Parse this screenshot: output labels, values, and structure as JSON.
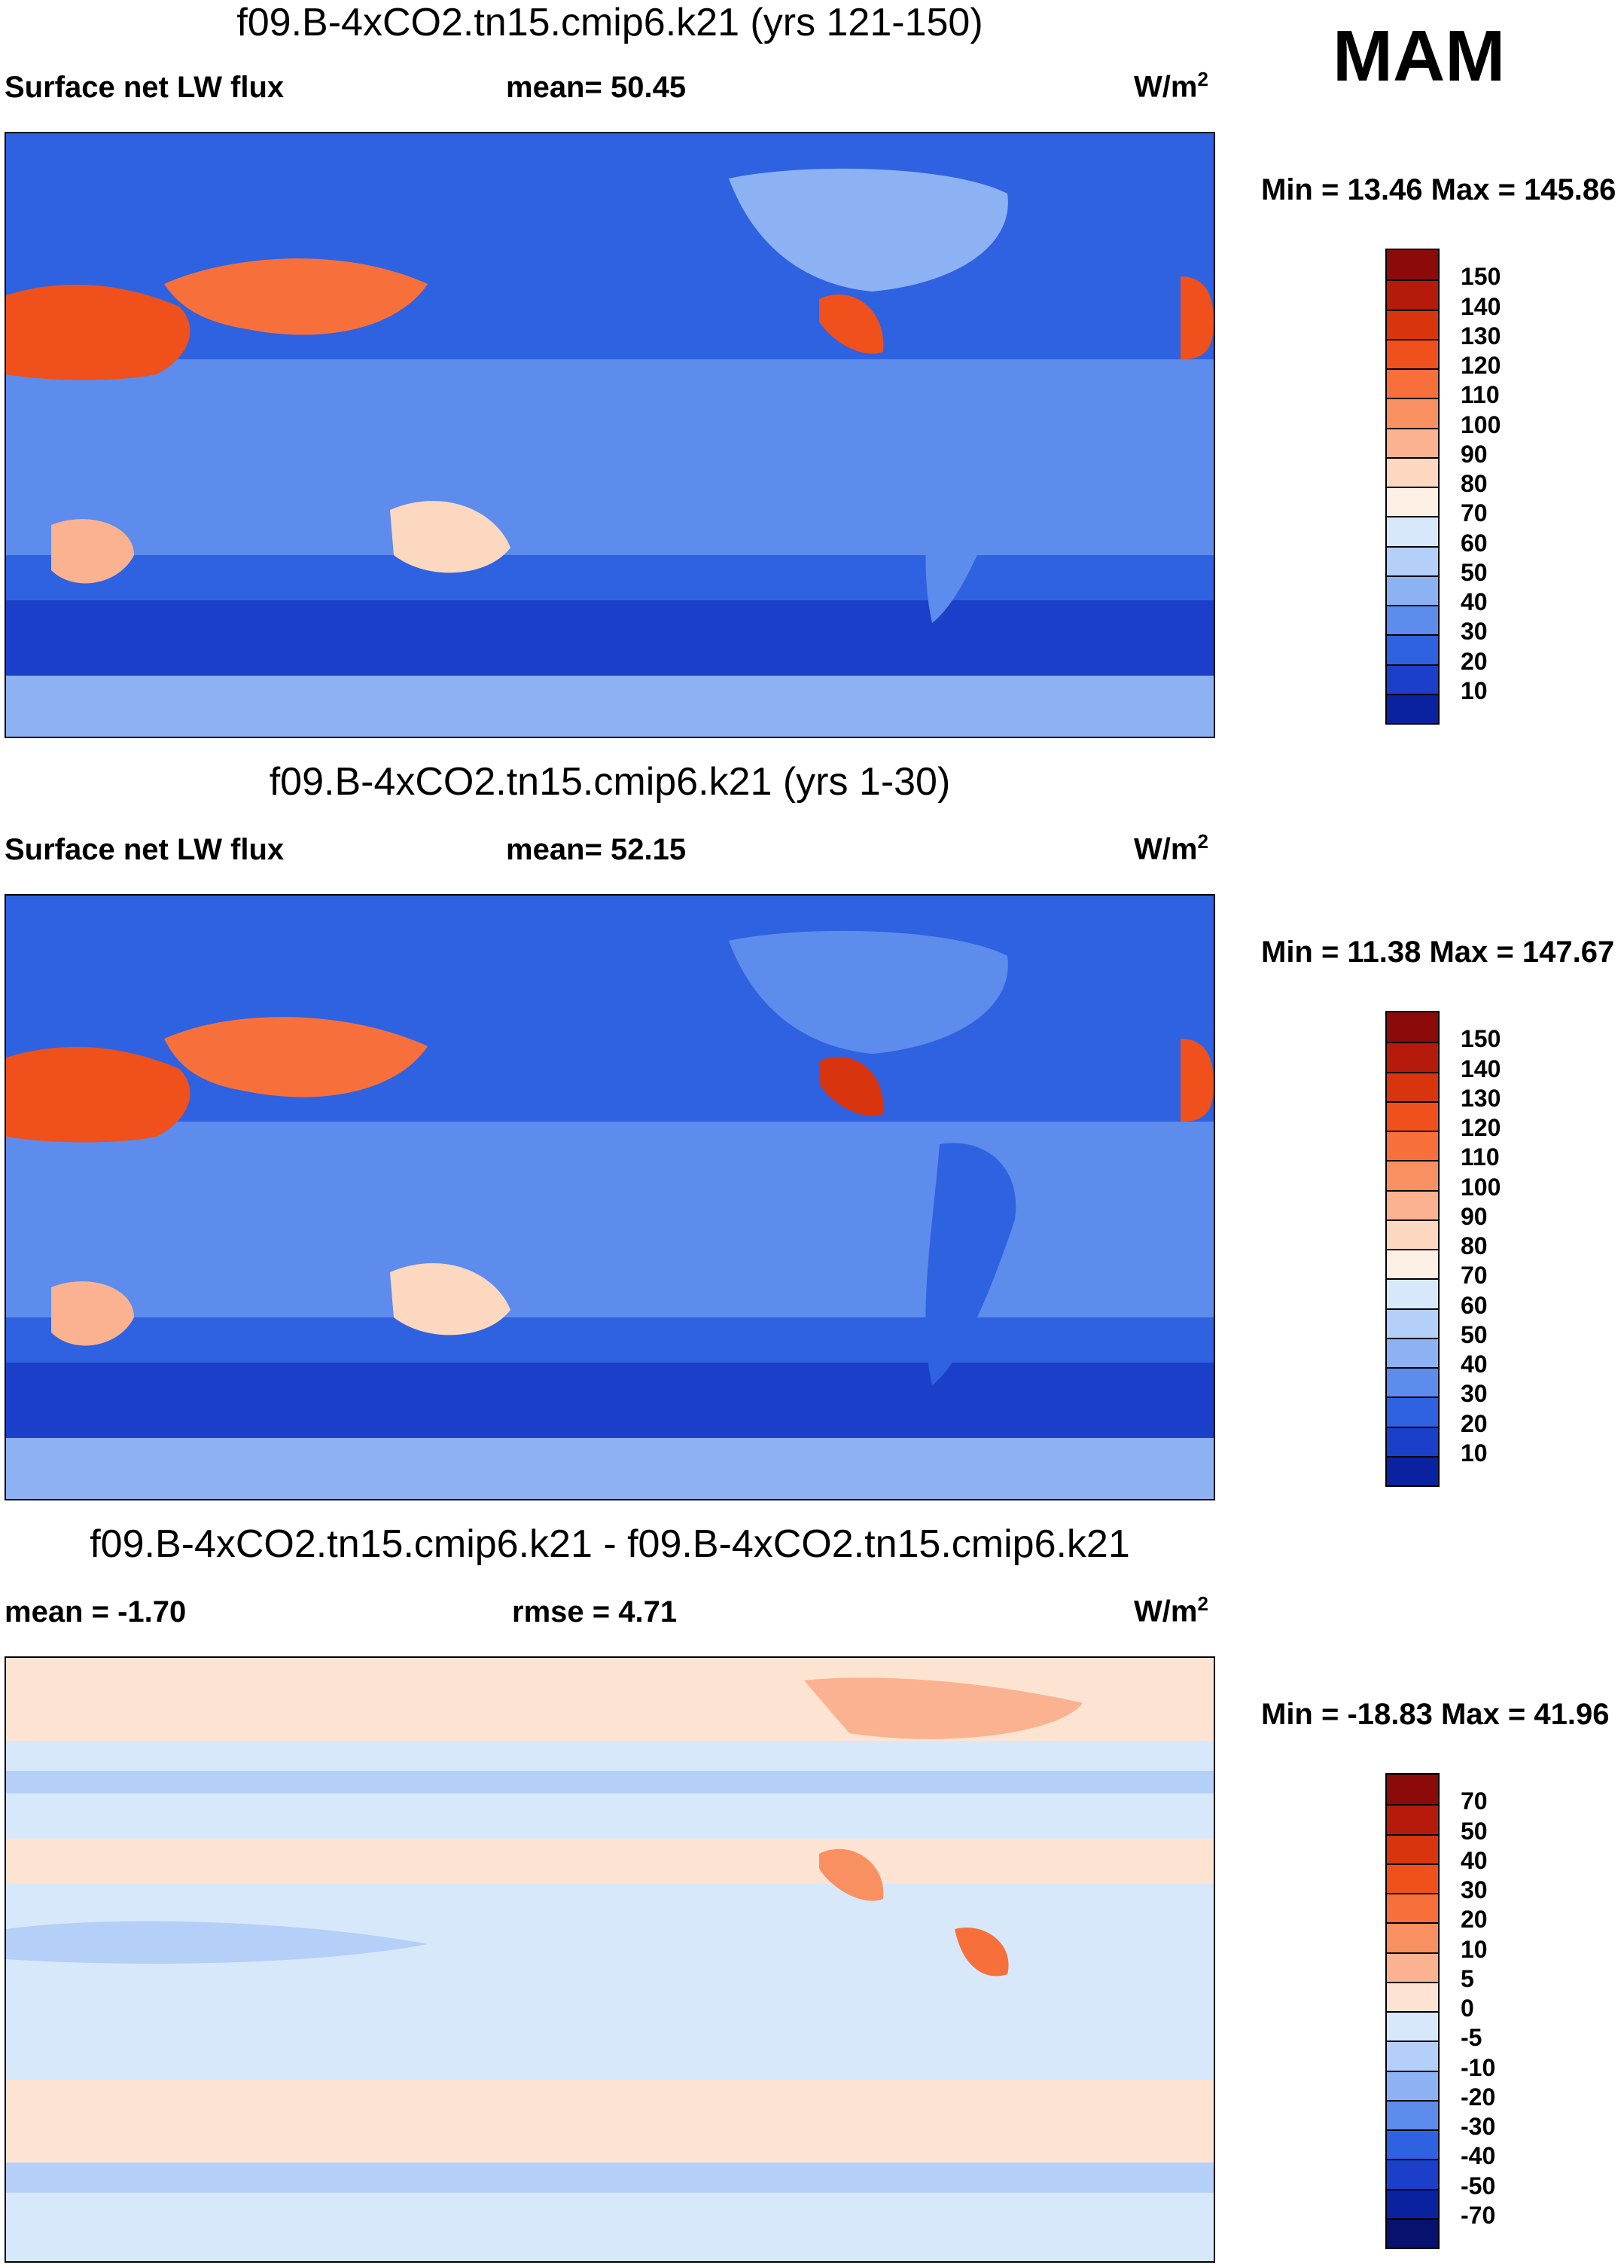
{
  "season": "MAM",
  "panels": [
    {
      "title": "f09.B-4xCO2.tn15.cmip6.k21 (yrs 121-150)",
      "left_label": "Surface net LW flux",
      "stat_label": "mean=",
      "stat_value": "50.45",
      "units": "W/m",
      "units_sup": "2",
      "min_max": "Min =  13.46 Max = 145.86"
    },
    {
      "title": "f09.B-4xCO2.tn15.cmip6.k21 (yrs 1-30)",
      "left_label": "Surface net LW flux",
      "stat_label": "mean=",
      "stat_value": "52.15",
      "units": "W/m",
      "units_sup": "2",
      "min_max": "Min =  11.38 Max = 147.67"
    },
    {
      "title": "f09.B-4xCO2.tn15.cmip6.k21 - f09.B-4xCO2.tn15.cmip6.k21",
      "left_label": "mean =  -1.70",
      "stat_label": "rmse =",
      "stat_value": "4.71",
      "units": "W/m",
      "units_sup": "2",
      "min_max": "Min = -18.83 Max =  41.96"
    }
  ],
  "colorbars": {
    "abs": {
      "labels": [
        "150",
        "140",
        "130",
        "120",
        "110",
        "100",
        "90",
        "80",
        "70",
        "60",
        "50",
        "40",
        "30",
        "20",
        "10"
      ],
      "colors": [
        "#8b0a0a",
        "#b61a0a",
        "#d8340e",
        "#f0501c",
        "#f7703c",
        "#f99062",
        "#fbb290",
        "#fdd8c0",
        "#fdf1e6",
        "#d8e8fb",
        "#b4cff8",
        "#8cb2f3",
        "#5d8cec",
        "#2f62e0",
        "#1b3fc8",
        "#0a22a0"
      ]
    },
    "diff": {
      "labels": [
        "70",
        "50",
        "40",
        "30",
        "20",
        "10",
        "5",
        "0",
        "-5",
        "-10",
        "-20",
        "-30",
        "-40",
        "-50",
        "-70"
      ],
      "colors": [
        "#8b0a0a",
        "#b61a0a",
        "#d8340e",
        "#f0501c",
        "#f7703c",
        "#f99062",
        "#fbb290",
        "#fde4d2",
        "#d8e8fb",
        "#b4cff8",
        "#8cb2f3",
        "#5d8cec",
        "#2f62e0",
        "#1b3fc8",
        "#0a22a0",
        "#06126e"
      ]
    }
  }
}
